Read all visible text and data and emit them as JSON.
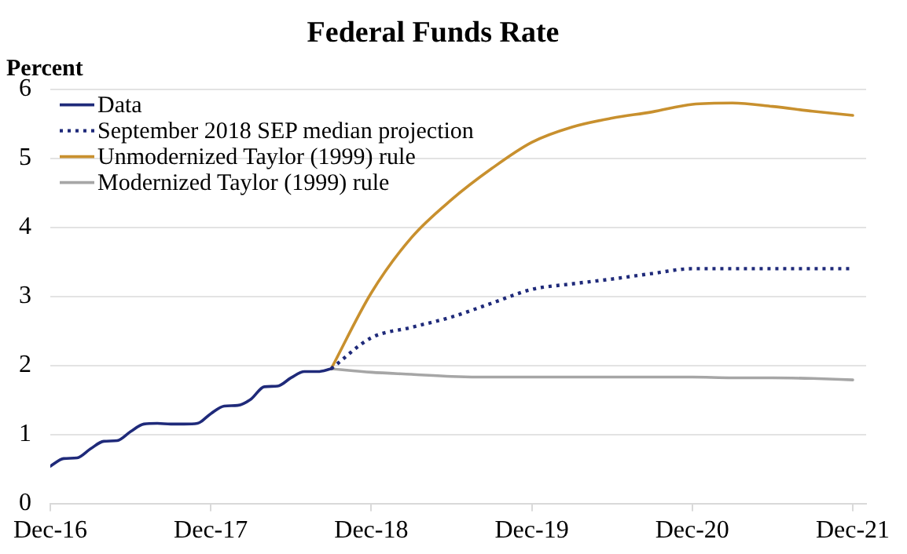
{
  "chart_data": {
    "type": "line",
    "title": "Federal Funds Rate",
    "ylabel": "Percent",
    "xlim": [
      "2016-12",
      "2022-01"
    ],
    "xticks": [
      {
        "value": "2016-12",
        "label": "Dec-16"
      },
      {
        "value": "2017-12",
        "label": "Dec-17"
      },
      {
        "value": "2018-12",
        "label": "Dec-18"
      },
      {
        "value": "2019-12",
        "label": "Dec-19"
      },
      {
        "value": "2020-12",
        "label": "Dec-20"
      },
      {
        "value": "2021-12",
        "label": "Dec-21"
      }
    ],
    "ylim": [
      0,
      6
    ],
    "yticks": [
      0,
      1,
      2,
      3,
      4,
      5,
      6
    ],
    "grid": "y",
    "legend": "top left",
    "marker": "none",
    "series": [
      {
        "name": "Data",
        "color": "#1f2a7a",
        "line_style": "solid",
        "x": [
          "2016-12",
          "2017-01",
          "2017-02",
          "2017-03",
          "2017-04",
          "2017-05",
          "2017-06",
          "2017-07",
          "2017-08",
          "2017-09",
          "2017-10",
          "2017-11",
          "2017-12",
          "2018-01",
          "2018-02",
          "2018-03",
          "2018-04",
          "2018-05",
          "2018-06",
          "2018-07",
          "2018-08",
          "2018-09"
        ],
        "values": [
          0.54,
          0.65,
          0.66,
          0.79,
          0.9,
          0.91,
          1.04,
          1.15,
          1.16,
          1.15,
          1.15,
          1.16,
          1.3,
          1.41,
          1.42,
          1.51,
          1.69,
          1.7,
          1.82,
          1.91,
          1.91,
          1.95
        ]
      },
      {
        "name": "September 2018 SEP median projection",
        "color": "#1f2a7a",
        "line_style": "dotted",
        "x": [
          "2018-09",
          "2018-12",
          "2019-03",
          "2019-06",
          "2019-09",
          "2019-12",
          "2020-03",
          "2020-06",
          "2020-09",
          "2020-12",
          "2021-03",
          "2021-06",
          "2021-09",
          "2021-12"
        ],
        "values": [
          1.95,
          2.4,
          2.55,
          2.7,
          2.9,
          3.1,
          3.18,
          3.25,
          3.33,
          3.4,
          3.4,
          3.4,
          3.4,
          3.4
        ]
      },
      {
        "name": "Unmodernized Taylor (1999) rule",
        "color": "#c8902e",
        "line_style": "solid",
        "x": [
          "2018-09",
          "2018-12",
          "2019-03",
          "2019-06",
          "2019-09",
          "2019-12",
          "2020-03",
          "2020-06",
          "2020-09",
          "2020-12",
          "2021-03",
          "2021-06",
          "2021-09",
          "2021-12"
        ],
        "values": [
          1.95,
          3.05,
          3.85,
          4.4,
          4.85,
          5.23,
          5.45,
          5.58,
          5.67,
          5.78,
          5.8,
          5.75,
          5.68,
          5.62
        ]
      },
      {
        "name": "Modernized Taylor (1999) rule",
        "color": "#a6a6a6",
        "line_style": "solid",
        "x": [
          "2018-09",
          "2018-12",
          "2019-03",
          "2019-06",
          "2019-09",
          "2019-12",
          "2020-03",
          "2020-06",
          "2020-09",
          "2020-12",
          "2021-03",
          "2021-06",
          "2021-09",
          "2021-12"
        ],
        "values": [
          1.95,
          1.9,
          1.87,
          1.84,
          1.83,
          1.83,
          1.83,
          1.83,
          1.83,
          1.83,
          1.82,
          1.82,
          1.81,
          1.79
        ]
      }
    ]
  }
}
